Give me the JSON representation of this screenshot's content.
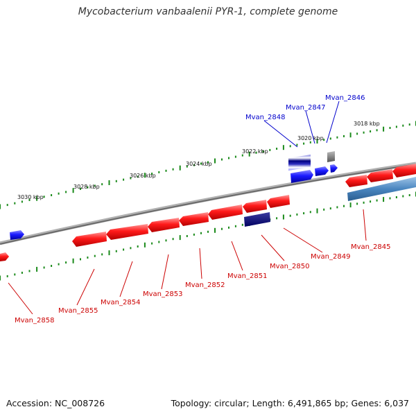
{
  "title": "Mycobacterium vanbaalenii PYR-1, complete genome",
  "accession": "Accession: NC_008726",
  "stats": "Topology: circular; Length: 6,491,865 bp; Genes: 6,037",
  "colors": {
    "forward_gene": "#ff0000",
    "reverse_gene": "#0000ff",
    "forward_label": "#cc0000",
    "reverse_label": "#0000cc",
    "backbone": "#8c8c8c",
    "tick": "#1a8a1a"
  },
  "scale_labels": [
    "3030 kbp",
    "3028 kbp",
    "3026 kbp",
    "3024 kbp",
    "3022 kbp",
    "3020 kbp",
    "3018 kbp"
  ],
  "forward_strand_genes": [
    "Mvan_2846",
    "Mvan_2847",
    "Mvan_2848"
  ],
  "reverse_strand_genes": [
    "Mvan_2845",
    "Mvan_2849",
    "Mvan_2850",
    "Mvan_2851",
    "Mvan_2852",
    "Mvan_2853",
    "Mvan_2854",
    "Mvan_2855",
    "Mvan_2858"
  ]
}
